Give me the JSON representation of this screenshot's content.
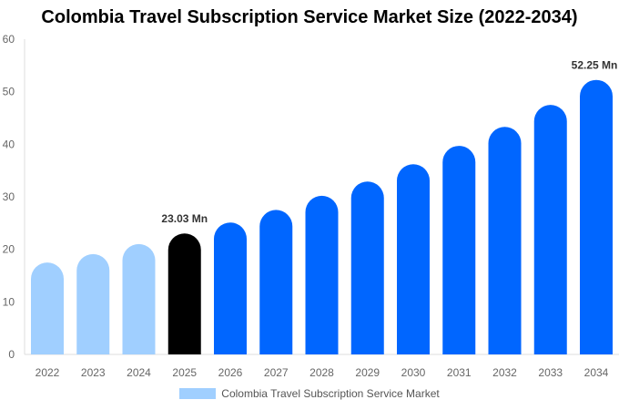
{
  "chart_data": {
    "type": "bar",
    "title": "Colombia Travel Subscription Service Market Size (2022-2034)",
    "categories": [
      "2022",
      "2023",
      "2024",
      "2025",
      "2026",
      "2027",
      "2028",
      "2029",
      "2030",
      "2031",
      "2032",
      "2033",
      "2034"
    ],
    "series": [
      {
        "name": "Colombia Travel Subscription Service Market",
        "values": [
          17.5,
          19.1,
          21.0,
          23.03,
          25.1,
          27.5,
          30.2,
          32.9,
          36.2,
          39.7,
          43.3,
          47.5,
          52.25
        ]
      }
    ],
    "data_labels": {
      "3": "23.03 Mn",
      "12": "52.25 Mn"
    },
    "ylim": [
      0,
      60
    ],
    "yticks": [
      0,
      10,
      20,
      30,
      40,
      50,
      60
    ],
    "grid": false,
    "legend": "bottom",
    "colors": {
      "historical": "#a0cfff",
      "current": "#000000",
      "forecast": "#0066ff"
    }
  }
}
